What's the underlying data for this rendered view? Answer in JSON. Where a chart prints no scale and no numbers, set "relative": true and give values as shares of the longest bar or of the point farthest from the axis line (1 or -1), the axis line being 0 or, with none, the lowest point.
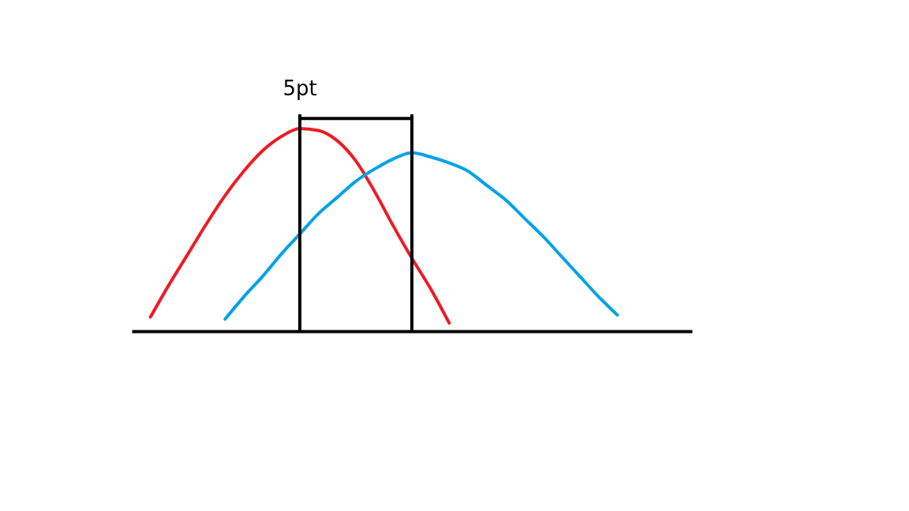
{
  "chart_data": {
    "type": "line",
    "relative": true,
    "categories": [
      null,
      null,
      null,
      null,
      null,
      null,
      null,
      null,
      null,
      null,
      null,
      null,
      null,
      null,
      null,
      null,
      null,
      null,
      null,
      null,
      null,
      null,
      null,
      null,
      null,
      null,
      null,
      null,
      null,
      null,
      null
    ],
    "series": [
      {
        "color": "#ed1c24",
        "values": [
          null,
          0.07,
          0.23,
          0.38,
          0.53,
          0.67,
          0.79,
          0.89,
          0.96,
          1.0,
          0.99,
          0.94,
          0.84,
          0.69,
          0.52,
          0.36,
          0.21,
          0.04,
          null,
          null,
          null,
          null,
          null,
          null,
          null,
          null,
          null,
          null,
          null,
          null,
          null
        ]
      },
      {
        "color": "#00a2e8",
        "values": [
          null,
          null,
          null,
          null,
          null,
          0.06,
          0.17,
          0.27,
          0.38,
          0.48,
          0.58,
          0.66,
          0.74,
          0.8,
          0.85,
          0.88,
          0.86,
          0.83,
          0.79,
          0.72,
          0.65,
          0.56,
          0.47,
          0.37,
          0.27,
          0.17,
          0.08,
          null,
          null,
          null,
          null
        ]
      }
    ],
    "annotations": [
      "5pt"
    ]
  }
}
